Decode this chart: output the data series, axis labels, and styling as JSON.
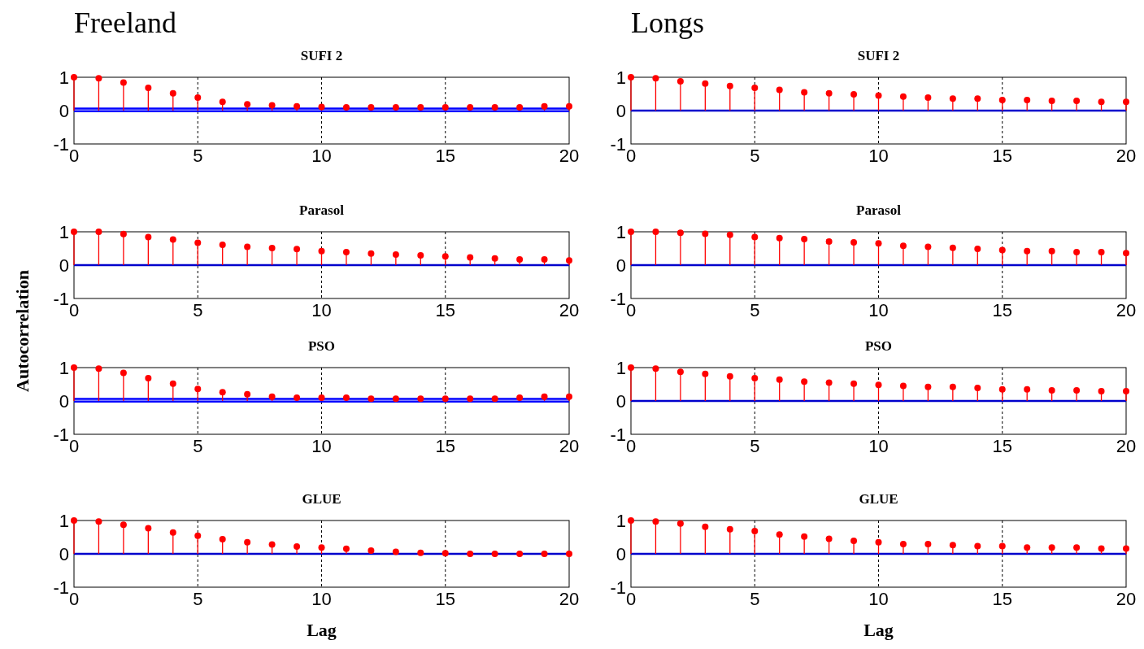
{
  "chart_data": [
    {
      "type": "lollipop",
      "title": "SUFI 2",
      "annotations": [
        "Freeland"
      ],
      "x": [
        0,
        1,
        2,
        3,
        4,
        5,
        6,
        7,
        8,
        9,
        10,
        11,
        12,
        13,
        14,
        15,
        16,
        17,
        18,
        19,
        20
      ],
      "xlim": [
        0,
        20
      ],
      "xticks": [
        0,
        5,
        10,
        15,
        20
      ],
      "ylim": [
        -1,
        1
      ],
      "yticks": [
        -1,
        0,
        1
      ],
      "grid": "x",
      "marker": "circle",
      "series": [
        {
          "color": "#ff0000",
          "values": [
            1,
            0.97,
            0.84,
            0.68,
            0.52,
            0.39,
            0.26,
            0.19,
            0.16,
            0.13,
            0.11,
            0.1,
            0.1,
            0.1,
            0.1,
            0.1,
            0.1,
            0.1,
            0.1,
            0.13,
            0.13
          ]
        }
      ],
      "ref_lines": [
        {
          "axis": "y",
          "value": 0.06,
          "color": "#0000ff"
        },
        {
          "axis": "y",
          "value": -0.02,
          "color": "#0000ff"
        }
      ]
    },
    {
      "type": "lollipop",
      "title": "SUFI 2",
      "annotations": [
        "Longs"
      ],
      "x": [
        0,
        1,
        2,
        3,
        4,
        5,
        6,
        7,
        8,
        9,
        10,
        11,
        12,
        13,
        14,
        15,
        16,
        17,
        18,
        19,
        20
      ],
      "xlim": [
        0,
        20
      ],
      "xticks": [
        0,
        5,
        10,
        15,
        20
      ],
      "ylim": [
        -1,
        1
      ],
      "yticks": [
        -1,
        0,
        1
      ],
      "grid": "x",
      "marker": "circle",
      "series": [
        {
          "color": "#ff0000",
          "values": [
            1,
            0.97,
            0.88,
            0.81,
            0.74,
            0.68,
            0.62,
            0.55,
            0.52,
            0.49,
            0.45,
            0.42,
            0.39,
            0.36,
            0.36,
            0.32,
            0.32,
            0.29,
            0.29,
            0.26,
            0.26
          ]
        }
      ],
      "ref_lines": [
        {
          "axis": "y",
          "value": 0,
          "color": "#0000cc"
        }
      ]
    },
    {
      "type": "lollipop",
      "title": "Parasol",
      "ylabel": "Autocorrelation",
      "x": [
        0,
        1,
        2,
        3,
        4,
        5,
        6,
        7,
        8,
        9,
        10,
        11,
        12,
        13,
        14,
        15,
        16,
        17,
        18,
        19,
        20
      ],
      "xlim": [
        0,
        20
      ],
      "xticks": [
        0,
        5,
        10,
        15,
        20
      ],
      "ylim": [
        -1,
        1
      ],
      "yticks": [
        -1,
        0,
        1
      ],
      "grid": "x",
      "marker": "circle",
      "series": [
        {
          "color": "#ff0000",
          "values": [
            1,
            1,
            0.93,
            0.84,
            0.77,
            0.67,
            0.61,
            0.55,
            0.51,
            0.48,
            0.42,
            0.39,
            0.35,
            0.32,
            0.29,
            0.26,
            0.23,
            0.2,
            0.17,
            0.17,
            0.14
          ]
        }
      ],
      "ref_lines": [
        {
          "axis": "y",
          "value": 0,
          "color": "#0000cc"
        }
      ]
    },
    {
      "type": "lollipop",
      "title": "Parasol",
      "x": [
        0,
        1,
        2,
        3,
        4,
        5,
        6,
        7,
        8,
        9,
        10,
        11,
        12,
        13,
        14,
        15,
        16,
        17,
        18,
        19,
        20
      ],
      "xlim": [
        0,
        20
      ],
      "xticks": [
        0,
        5,
        10,
        15,
        20
      ],
      "ylim": [
        -1,
        1
      ],
      "yticks": [
        -1,
        0,
        1
      ],
      "grid": "x",
      "marker": "circle",
      "series": [
        {
          "color": "#ff0000",
          "values": [
            1,
            1,
            0.97,
            0.94,
            0.91,
            0.84,
            0.81,
            0.78,
            0.71,
            0.68,
            0.65,
            0.58,
            0.55,
            0.52,
            0.49,
            0.45,
            0.42,
            0.42,
            0.39,
            0.39,
            0.36
          ]
        }
      ],
      "ref_lines": [
        {
          "axis": "y",
          "value": 0,
          "color": "#0000cc"
        }
      ]
    },
    {
      "type": "lollipop",
      "title": "PSO",
      "x": [
        0,
        1,
        2,
        3,
        4,
        5,
        6,
        7,
        8,
        9,
        10,
        11,
        12,
        13,
        14,
        15,
        16,
        17,
        18,
        19,
        20
      ],
      "xlim": [
        0,
        20
      ],
      "xticks": [
        0,
        5,
        10,
        15,
        20
      ],
      "ylim": [
        -1,
        1
      ],
      "yticks": [
        -1,
        0,
        1
      ],
      "grid": "x",
      "marker": "circle",
      "series": [
        {
          "color": "#ff0000",
          "values": [
            1,
            0.97,
            0.84,
            0.68,
            0.52,
            0.36,
            0.26,
            0.2,
            0.13,
            0.1,
            0.1,
            0.1,
            0.07,
            0.07,
            0.07,
            0.07,
            0.07,
            0.07,
            0.1,
            0.13,
            0.13
          ]
        }
      ],
      "ref_lines": [
        {
          "axis": "y",
          "value": 0.06,
          "color": "#0000ff"
        },
        {
          "axis": "y",
          "value": -0.02,
          "color": "#0000ff"
        }
      ]
    },
    {
      "type": "lollipop",
      "title": "PSO",
      "x": [
        0,
        1,
        2,
        3,
        4,
        5,
        6,
        7,
        8,
        9,
        10,
        11,
        12,
        13,
        14,
        15,
        16,
        17,
        18,
        19,
        20
      ],
      "xlim": [
        0,
        20
      ],
      "xticks": [
        0,
        5,
        10,
        15,
        20
      ],
      "ylim": [
        -1,
        1
      ],
      "yticks": [
        -1,
        0,
        1
      ],
      "grid": "x",
      "marker": "circle",
      "series": [
        {
          "color": "#ff0000",
          "values": [
            1,
            0.97,
            0.87,
            0.81,
            0.74,
            0.68,
            0.64,
            0.58,
            0.55,
            0.52,
            0.48,
            0.45,
            0.42,
            0.42,
            0.39,
            0.35,
            0.35,
            0.32,
            0.32,
            0.29,
            0.29
          ]
        }
      ],
      "ref_lines": [
        {
          "axis": "y",
          "value": 0,
          "color": "#0000cc"
        }
      ]
    },
    {
      "type": "lollipop",
      "title": "GLUE",
      "xlabel": "Lag",
      "x": [
        0,
        1,
        2,
        3,
        4,
        5,
        6,
        7,
        8,
        9,
        10,
        11,
        12,
        13,
        14,
        15,
        16,
        17,
        18,
        19,
        20
      ],
      "xlim": [
        0,
        20
      ],
      "xticks": [
        0,
        5,
        10,
        15,
        20
      ],
      "ylim": [
        -1,
        1
      ],
      "yticks": [
        -1,
        0,
        1
      ],
      "grid": "x",
      "marker": "circle",
      "series": [
        {
          "color": "#ff0000",
          "values": [
            1,
            0.97,
            0.87,
            0.77,
            0.64,
            0.54,
            0.44,
            0.35,
            0.28,
            0.22,
            0.19,
            0.15,
            0.1,
            0.06,
            0.03,
            0.02,
            0,
            0,
            0,
            0,
            0
          ]
        }
      ],
      "ref_lines": [
        {
          "axis": "y",
          "value": 0,
          "color": "#0000cc"
        }
      ]
    },
    {
      "type": "lollipop",
      "title": "GLUE",
      "xlabel": "Lag",
      "x": [
        0,
        1,
        2,
        3,
        4,
        5,
        6,
        7,
        8,
        9,
        10,
        11,
        12,
        13,
        14,
        15,
        16,
        17,
        18,
        19,
        20
      ],
      "xlim": [
        0,
        20
      ],
      "xticks": [
        0,
        5,
        10,
        15,
        20
      ],
      "ylim": [
        -1,
        1
      ],
      "yticks": [
        -1,
        0,
        1
      ],
      "grid": "x",
      "marker": "circle",
      "series": [
        {
          "color": "#ff0000",
          "values": [
            1,
            0.97,
            0.91,
            0.81,
            0.74,
            0.68,
            0.58,
            0.52,
            0.45,
            0.39,
            0.35,
            0.29,
            0.29,
            0.26,
            0.23,
            0.23,
            0.19,
            0.19,
            0.19,
            0.16,
            0.16
          ]
        }
      ],
      "ref_lines": [
        {
          "axis": "y",
          "value": 0,
          "color": "#0000cc"
        }
      ]
    }
  ]
}
